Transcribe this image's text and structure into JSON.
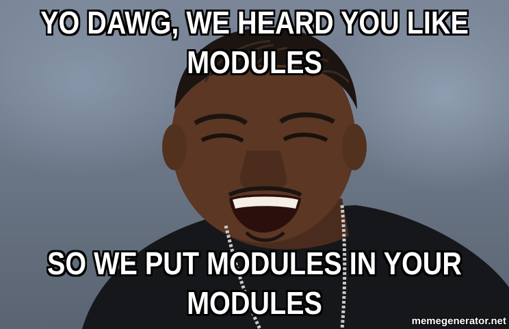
{
  "meme": {
    "top_text": [
      "YO DAWG, WE HEARD YOU LIKE",
      "MODULES"
    ],
    "bottom_text": [
      "SO WE PUT MODULES IN YOUR",
      "MODULES"
    ],
    "watermark": "memegenerator.net",
    "text_color": "#ffffff",
    "outline_color": "#000000"
  }
}
